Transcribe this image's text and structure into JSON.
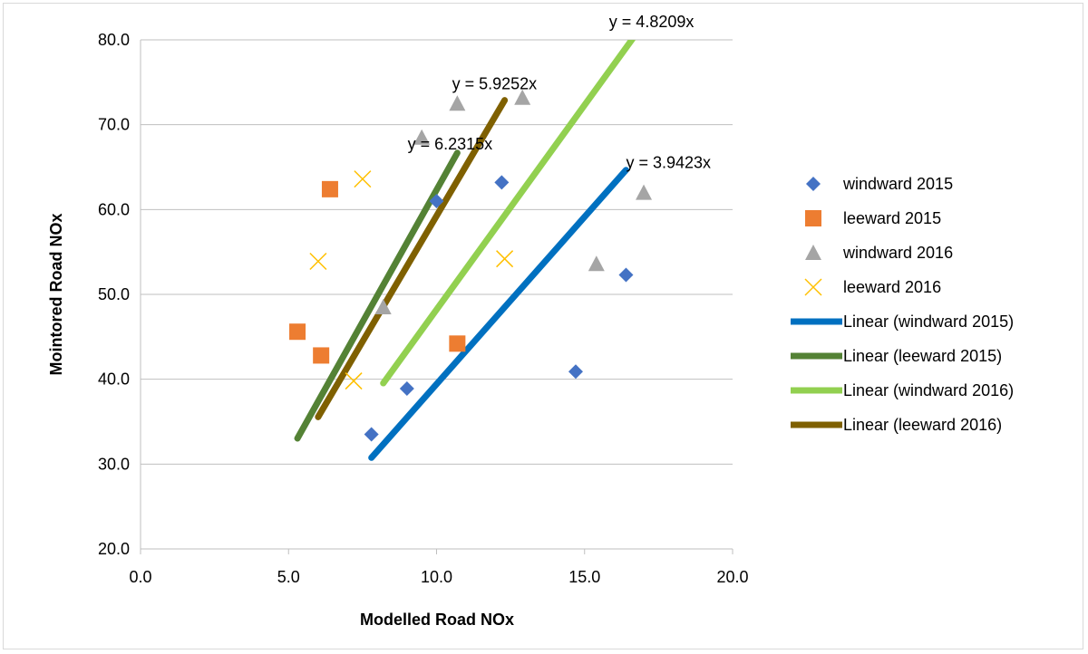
{
  "chart_data": {
    "type": "scatter",
    "title": "",
    "xlabel": "Modelled Road NOx",
    "ylabel": "Mointored Road NOx",
    "xlim": [
      0,
      20
    ],
    "ylim": [
      20,
      80
    ],
    "xticks": [
      "0.0",
      "5.0",
      "10.0",
      "15.0",
      "20.0"
    ],
    "yticks": [
      "20.0",
      "30.0",
      "40.0",
      "50.0",
      "60.0",
      "70.0",
      "80.0"
    ],
    "grid": "horizontal",
    "legend_position": "right",
    "series": [
      {
        "name": "windward 2015",
        "marker": "diamond",
        "color": "#4472C4",
        "points": [
          [
            7.8,
            33.5
          ],
          [
            9.0,
            38.9
          ],
          [
            10.0,
            61.0
          ],
          [
            12.2,
            63.2
          ],
          [
            14.7,
            40.9
          ],
          [
            16.4,
            52.3
          ]
        ]
      },
      {
        "name": "leeward 2015",
        "marker": "square",
        "color": "#ED7D31",
        "points": [
          [
            5.3,
            45.6
          ],
          [
            6.1,
            42.8
          ],
          [
            6.4,
            62.4
          ],
          [
            10.7,
            44.2
          ]
        ]
      },
      {
        "name": "windward 2016",
        "marker": "triangle",
        "color": "#A5A5A5",
        "points": [
          [
            8.2,
            48.5
          ],
          [
            9.5,
            68.5
          ],
          [
            10.7,
            72.5
          ],
          [
            12.9,
            73.2
          ],
          [
            15.4,
            53.6
          ],
          [
            17.0,
            62.0
          ]
        ]
      },
      {
        "name": "leeward 2016",
        "marker": "x",
        "color": "#FFC000",
        "points": [
          [
            6.0,
            53.9
          ],
          [
            7.2,
            39.8
          ],
          [
            7.5,
            63.6
          ],
          [
            12.3,
            54.2
          ]
        ]
      }
    ],
    "trendlines": [
      {
        "name": "Linear (windward 2015)",
        "color": "#0070C0",
        "slope": 3.9423,
        "x_range": [
          7.8,
          16.4
        ],
        "equation": "y = 3.9423x"
      },
      {
        "name": "Linear (leeward 2015)",
        "color": "#548235",
        "slope": 6.2315,
        "x_range": [
          5.3,
          10.7
        ],
        "equation": "y = 6.2315x"
      },
      {
        "name": "Linear (windward 2016)",
        "color": "#92D050",
        "slope": 4.8209,
        "x_range": [
          8.2,
          17.0
        ],
        "equation": "y = 4.8209x"
      },
      {
        "name": "Linear (leeward 2016)",
        "color": "#7F6000",
        "slope": 5.9252,
        "x_range": [
          6.0,
          12.3
        ],
        "equation": "y = 5.9252x"
      }
    ]
  }
}
